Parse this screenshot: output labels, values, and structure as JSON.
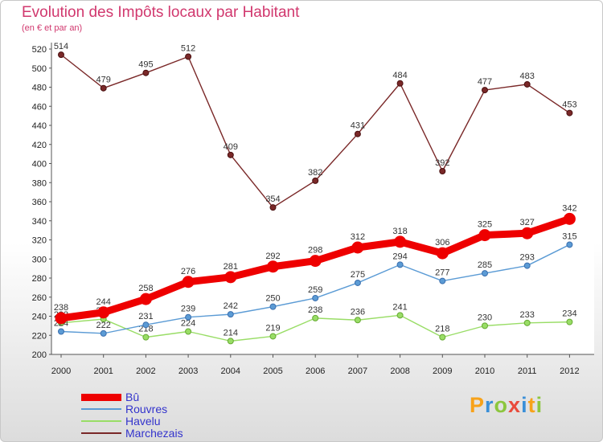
{
  "title": "Evolution des Impôts locaux par Habitant",
  "subtitle": "(en € et par an)",
  "logo": "Proxiti",
  "chart_data": {
    "type": "line",
    "x": [
      "2000",
      "2001",
      "2002",
      "2003",
      "2004",
      "2005",
      "2006",
      "2007",
      "2008",
      "2009",
      "2010",
      "2011",
      "2012"
    ],
    "ylim": [
      200,
      520
    ],
    "yticks": [
      200,
      220,
      240,
      260,
      280,
      300,
      320,
      340,
      360,
      380,
      400,
      420,
      440,
      460,
      480,
      500,
      520
    ],
    "grid": false,
    "legend_position": "bottom-left",
    "series": [
      {
        "name": "Bû",
        "color": "#ee0000",
        "values": [
          238,
          244,
          258,
          276,
          281,
          292,
          298,
          312,
          318,
          306,
          325,
          327,
          342
        ]
      },
      {
        "name": "Rouvres",
        "color": "#5b9bd5",
        "values": [
          224,
          222,
          231,
          239,
          242,
          250,
          259,
          275,
          294,
          277,
          285,
          293,
          315
        ]
      },
      {
        "name": "Havelu",
        "color": "#99dd66",
        "values": [
          233,
          237,
          218,
          224,
          214,
          219,
          238,
          236,
          241,
          218,
          230,
          233,
          234
        ]
      },
      {
        "name": "Marchezais",
        "color": "#7a2828",
        "values": [
          514,
          479,
          495,
          512,
          409,
          354,
          382,
          431,
          484,
          392,
          477,
          483,
          453
        ]
      }
    ]
  }
}
